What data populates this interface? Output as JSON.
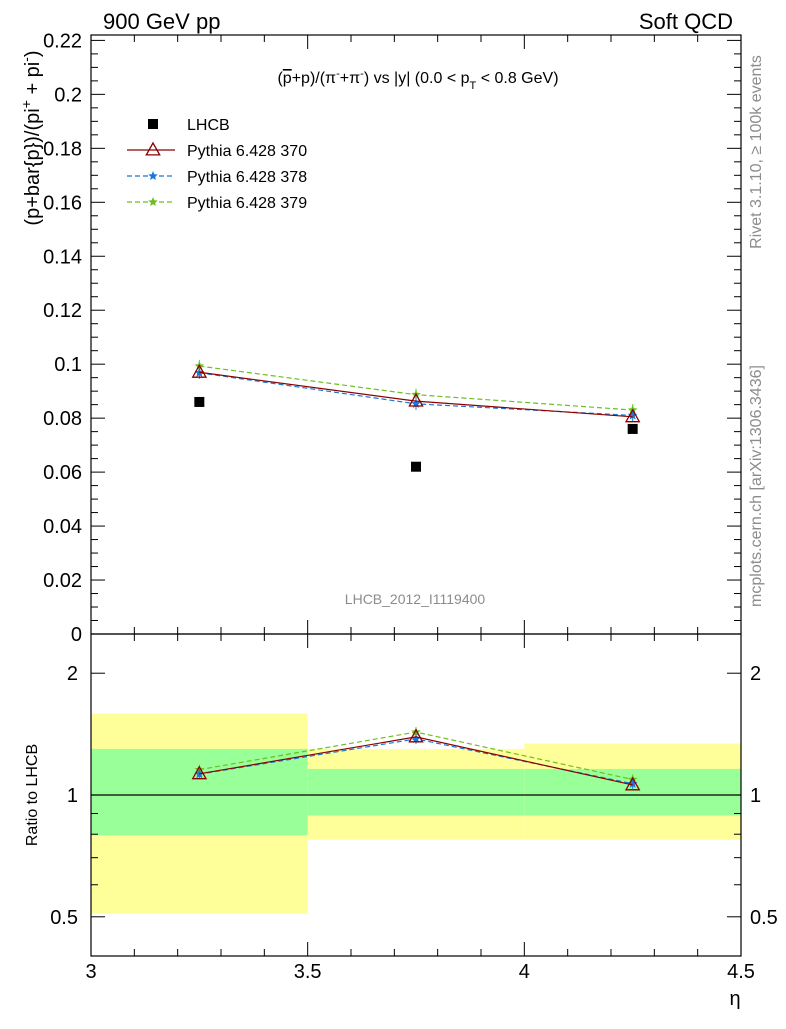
{
  "header": {
    "left": "900 GeV pp",
    "right": "Soft QCD"
  },
  "side_labels": {
    "rivet": "Rivet 3.1.10, ≥ 100k events",
    "mcplots": "mcplots.cern.ch [arXiv:1306.3436]"
  },
  "chart_data": [
    {
      "type": "scatter",
      "title_parts": {
        "lead": "(",
        "pbar": "p",
        "mid": "+p)/(π",
        "sup1": "-",
        "mid2": "+π",
        "sup2": "-",
        "mid3": ") vs |y| (0.0 < p",
        "sub": "T",
        "tail": " < 0.8 GeV)"
      },
      "ylabel_parts": {
        "a": "(p+bar{p})/(pi",
        "sup": "+",
        "b": " + pi",
        "sup2": "-",
        "c": ")"
      },
      "watermark": "LHCB_2012_I1119400",
      "xlim": [
        3.0,
        4.5
      ],
      "ylim": [
        0.0,
        0.222
      ],
      "yticks": [
        0,
        0.02,
        0.04,
        0.06,
        0.08,
        0.1,
        0.12,
        0.14,
        0.16,
        0.18,
        0.2,
        0.22
      ],
      "ytick_labels": [
        "0",
        "0.02",
        "0.04",
        "0.06",
        "0.08",
        "0.1",
        "0.12",
        "0.14",
        "0.16",
        "0.18",
        "0.2",
        "0.22"
      ],
      "legend_position": "top-left",
      "series": [
        {
          "name": "LHCB",
          "color": "#000000",
          "style": "marker-square",
          "x": [
            3.25,
            3.75,
            4.25
          ],
          "y": [
            0.086,
            0.062,
            0.076
          ]
        },
        {
          "name": "Pythia 6.428 370",
          "color": "#8b0000",
          "style": "solid-triangle",
          "x": [
            3.25,
            3.75,
            4.25
          ],
          "y": [
            0.097,
            0.0863,
            0.0805
          ]
        },
        {
          "name": "Pythia 6.428 378",
          "color": "#1a78d8",
          "style": "dashed-star",
          "x": [
            3.25,
            3.75,
            4.25
          ],
          "y": [
            0.0968,
            0.0853,
            0.081
          ]
        },
        {
          "name": "Pythia 6.428 379",
          "color": "#6cbf1f",
          "style": "dashed-star",
          "x": [
            3.25,
            3.75,
            4.25
          ],
          "y": [
            0.0993,
            0.0887,
            0.083
          ]
        }
      ]
    },
    {
      "type": "scatter",
      "ylabel": "Ratio to LHCB",
      "xlabel": "η",
      "scale": "log",
      "ylim": [
        0.4,
        2.5
      ],
      "yticks": [
        0.5,
        1,
        2
      ],
      "ytick_labels": [
        "0.5",
        "1",
        "2"
      ],
      "xticks": [
        3.0,
        3.5,
        4.0,
        4.5
      ],
      "xtick_labels": [
        "3",
        "3.5",
        "4",
        "4.5"
      ],
      "bands": [
        {
          "x": [
            3.0,
            3.5
          ],
          "yellow": [
            0.51,
            1.59
          ],
          "green": [
            0.795,
            1.3
          ]
        },
        {
          "x": [
            3.5,
            4.0
          ],
          "yellow": [
            0.775,
            1.3
          ],
          "green": [
            0.89,
            1.16
          ]
        },
        {
          "x": [
            4.0,
            4.5
          ],
          "yellow": [
            0.775,
            1.34
          ],
          "green": [
            0.89,
            1.16
          ]
        }
      ],
      "series": [
        {
          "name": "Pythia 6.428 370",
          "color": "#8b0000",
          "x": [
            3.25,
            3.75,
            4.25
          ],
          "y": [
            1.128,
            1.392,
            1.059
          ]
        },
        {
          "name": "Pythia 6.428 378",
          "color": "#1a78d8",
          "x": [
            3.25,
            3.75,
            4.25
          ],
          "y": [
            1.126,
            1.376,
            1.066
          ]
        },
        {
          "name": "Pythia 6.428 379",
          "color": "#6cbf1f",
          "x": [
            3.25,
            3.75,
            4.25
          ],
          "y": [
            1.155,
            1.431,
            1.092
          ]
        }
      ]
    }
  ]
}
